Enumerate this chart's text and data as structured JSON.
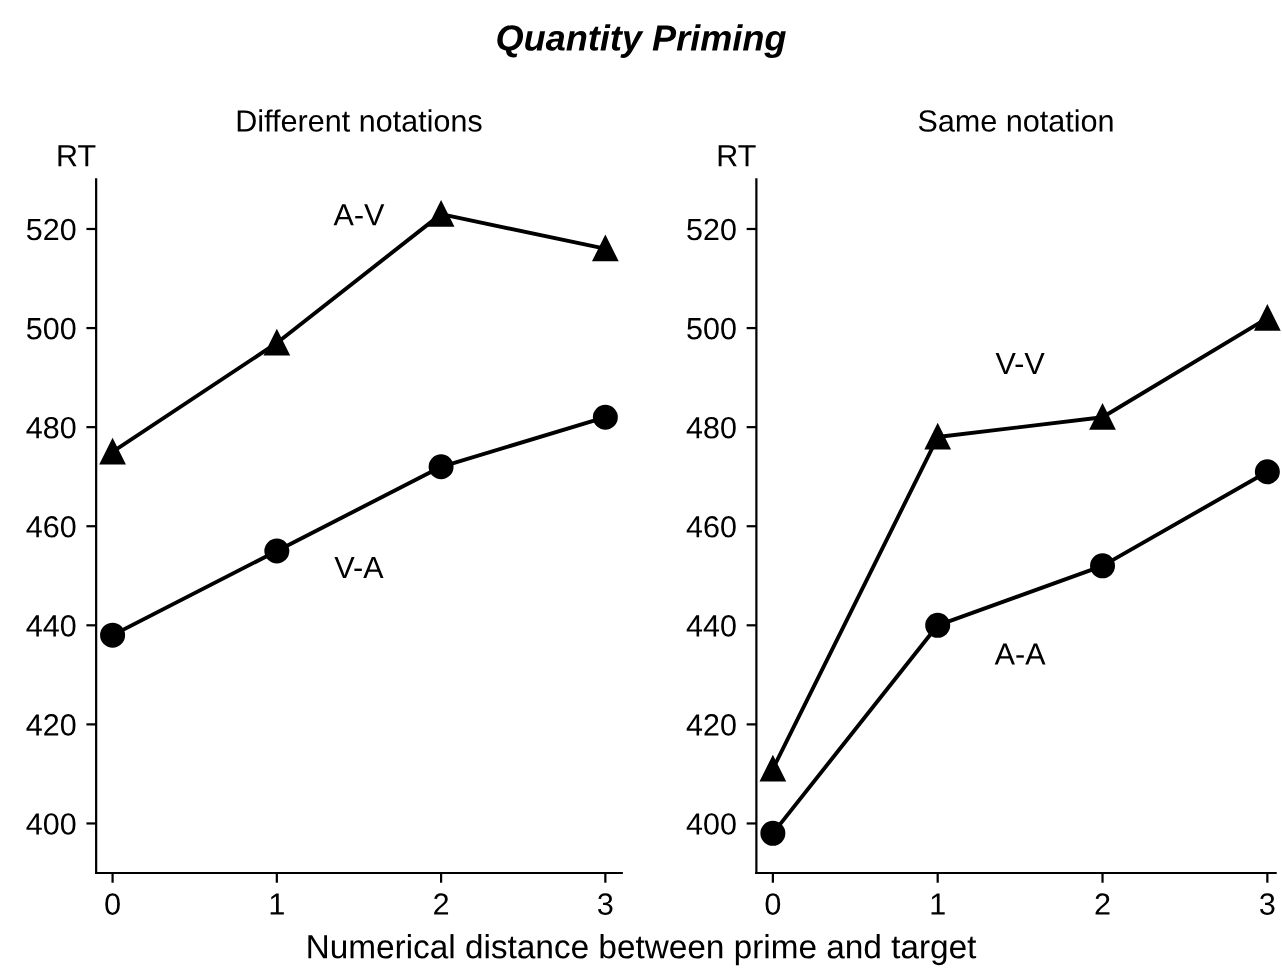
{
  "chart_data": [
    {
      "type": "line",
      "title": "Quantity Priming",
      "subtitle": "Different notations",
      "xlabel": "Numerical distance between prime and target",
      "ylabel": "RT",
      "x": [
        0,
        1,
        2,
        3
      ],
      "xlim": [
        -0.1,
        3.1
      ],
      "xticks": [
        0,
        1,
        2,
        3
      ],
      "ylim": [
        390,
        530
      ],
      "yticks": [
        400,
        420,
        440,
        460,
        480,
        500,
        520
      ],
      "grid": false,
      "legend": false,
      "series": [
        {
          "name": "A-V",
          "color": "#000000",
          "marker": "triangle",
          "values": [
            475,
            497,
            523,
            516
          ]
        },
        {
          "name": "V-A",
          "color": "#000000",
          "marker": "circle",
          "values": [
            438,
            455,
            472,
            482
          ]
        }
      ]
    },
    {
      "type": "line",
      "subtitle": "Same notation",
      "ylabel": "RT",
      "x": [
        0,
        1,
        2,
        3
      ],
      "xlim": [
        -0.1,
        3.05
      ],
      "xticks": [
        0,
        1,
        2,
        3
      ],
      "ylim": [
        390,
        530
      ],
      "yticks": [
        400,
        420,
        440,
        460,
        480,
        500,
        520
      ],
      "grid": false,
      "legend": false,
      "series": [
        {
          "name": "V-V",
          "color": "#000000",
          "marker": "triangle",
          "values": [
            411,
            478,
            482,
            502
          ]
        },
        {
          "name": "A-A",
          "color": "#000000",
          "marker": "circle",
          "values": [
            398,
            440,
            452,
            471
          ]
        }
      ]
    }
  ]
}
